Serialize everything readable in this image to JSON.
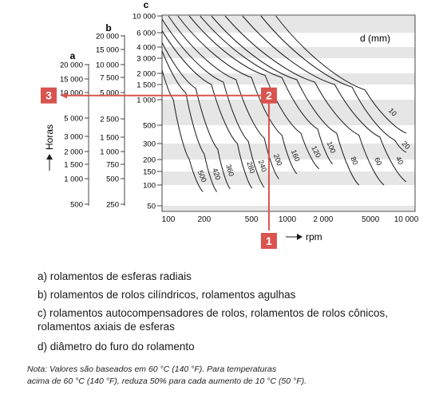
{
  "chart_data": {
    "type": "line",
    "x_axis": {
      "label": "rpm",
      "scale": "log",
      "range": [
        70,
        10000
      ],
      "ticks": [
        {
          "value": 100,
          "label": "100"
        },
        {
          "value": 200,
          "label": "200"
        },
        {
          "value": 500,
          "label": "500"
        },
        {
          "value": 1000,
          "label": "1000"
        },
        {
          "value": 2000,
          "label": "2 000"
        },
        {
          "value": 5000,
          "label": "5000"
        },
        {
          "value": 10000,
          "label": "10 000"
        }
      ]
    },
    "y_axis_label": "Horas",
    "scale_c": {
      "title": "c",
      "range": [
        40,
        10000
      ],
      "ticks": [
        {
          "value": 10000,
          "label": "10 000"
        },
        {
          "value": 6000,
          "label": "6 000"
        },
        {
          "value": 4000,
          "label": "4 000"
        },
        {
          "value": 3000,
          "label": "3 000"
        },
        {
          "value": 2000,
          "label": "2 000"
        },
        {
          "value": 1500,
          "label": "1 500"
        },
        {
          "value": 1000,
          "label": "1 000"
        },
        {
          "value": 500,
          "label": "500"
        },
        {
          "value": 300,
          "label": "300"
        },
        {
          "value": 200,
          "label": "200"
        },
        {
          "value": 150,
          "label": "150"
        },
        {
          "value": 100,
          "label": "100"
        },
        {
          "value": 50,
          "label": "50"
        }
      ]
    },
    "scale_b": {
      "title": "b",
      "ticks": [
        {
          "value": 20000,
          "label": "20 000"
        },
        {
          "value": 15000,
          "label": "15 000"
        },
        {
          "value": 10000,
          "label": "10 000"
        },
        {
          "value": 7500,
          "label": "7 500"
        },
        {
          "value": 5000,
          "label": "5 000"
        },
        {
          "value": 2500,
          "label": "2 500"
        },
        {
          "value": 1500,
          "label": "1 500"
        },
        {
          "value": 1000,
          "label": "1 000"
        },
        {
          "value": 750,
          "label": "750"
        },
        {
          "value": 500,
          "label": "500"
        },
        {
          "value": 250,
          "label": "250"
        }
      ]
    },
    "scale_a": {
      "title": "a",
      "ticks": [
        {
          "value": 20000,
          "label": "20 000"
        },
        {
          "value": 15000,
          "label": "15 000"
        },
        {
          "value": 10000,
          "label": "10 000"
        },
        {
          "value": 5000,
          "label": "5 000"
        },
        {
          "value": 3000,
          "label": "3 000"
        },
        {
          "value": 2000,
          "label": "2 000"
        },
        {
          "value": 1500,
          "label": "1 500"
        },
        {
          "value": 1000,
          "label": "1 000"
        },
        {
          "value": 500,
          "label": "500"
        }
      ]
    },
    "series_title": "d (mm)",
    "series": [
      {
        "name": "500",
        "x": [
          70,
          110,
          150,
          195
        ],
        "y": [
          10000,
          1000,
          200,
          80
        ]
      },
      {
        "name": "420",
        "x": [
          70,
          140,
          200,
          255
        ],
        "y": [
          10000,
          1200,
          230,
          80
        ]
      },
      {
        "name": "360",
        "x": [
          70,
          170,
          260,
          330
        ],
        "y": [
          10000,
          1350,
          260,
          88
        ]
      },
      {
        "name": "280",
        "x": [
          75,
          230,
          380,
          505
        ],
        "y": [
          10000,
          1500,
          300,
          90
        ]
      },
      {
        "name": "240",
        "x": [
          85,
          290,
          470,
          640
        ],
        "y": [
          10000,
          1600,
          320,
          92
        ]
      },
      {
        "name": "200",
        "x": [
          100,
          370,
          640,
          850
        ],
        "y": [
          10000,
          1700,
          350,
          120
        ]
      },
      {
        "name": "160",
        "x": [
          120,
          500,
          900,
          1200
        ],
        "y": [
          10000,
          1800,
          380,
          140
        ]
      },
      {
        "name": "120",
        "x": [
          150,
          650,
          1300,
          1850
        ],
        "y": [
          10000,
          1900,
          400,
          160
        ]
      },
      {
        "name": "100",
        "x": [
          185,
          900,
          1800,
          2400
        ],
        "y": [
          10000,
          1800,
          450,
          180
        ]
      },
      {
        "name": "80",
        "x": [
          230,
          1200,
          2600,
          4000
        ],
        "y": [
          10000,
          1700,
          400,
          100
        ]
      },
      {
        "name": "60",
        "x": [
          300,
          1700,
          4000,
          6500
        ],
        "y": [
          10000,
          1600,
          380,
          100
        ]
      },
      {
        "name": "40",
        "x": [
          420,
          2500,
          6000,
          10000
        ],
        "y": [
          10000,
          1500,
          360,
          110
        ]
      },
      {
        "name": "20",
        "x": [
          600,
          3500,
          8000,
          10000
        ],
        "y": [
          10000,
          1400,
          330,
          240
        ]
      },
      {
        "name": "10",
        "x": [
          800,
          4500,
          10000
        ],
        "y": [
          10000,
          1300,
          400
        ]
      }
    ],
    "example_path": {
      "markers": [
        "1",
        "2",
        "3"
      ],
      "rpm": 700,
      "hours_c": 1300
    }
  },
  "legend": [
    {
      "line": "a) rolamentos de esferas radiais"
    },
    {
      "line": "b) rolamentos de rolos cilíndricos, rolamentos agulhas"
    },
    {
      "line": "c) rolamentos autocompensadores de rolos, rolamentos de rolos cônicos,",
      "cont": "rolamentos axiais de esferas"
    },
    {
      "line": "d) diâmetro do furo do rolamento"
    }
  ],
  "note": {
    "line1": "Nota: Valores são baseados em 60 °C (140 °F). Para temperaturas",
    "line2": "acima de 60 °C (140 °F), reduza 50% para cada aumento de 10 °C (50 °F)."
  },
  "colors": {
    "stripe": "#e6e6e6",
    "curve": "#1a1a1a",
    "accent": "#d9534f"
  }
}
